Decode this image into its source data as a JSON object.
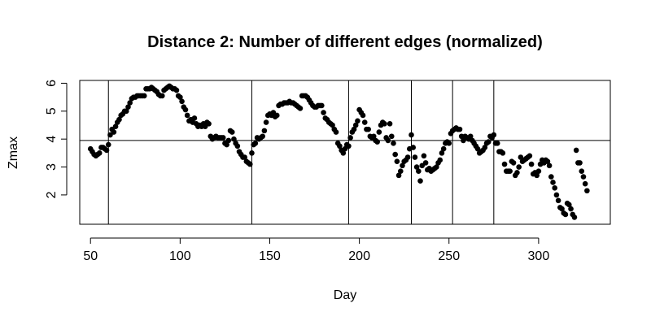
{
  "chart_data": {
    "type": "scatter",
    "title": "Distance 2: Number of different edges (normalized)",
    "xlabel": "Day",
    "ylabel": "Zmax",
    "xlim": [
      44,
      340
    ],
    "ylim": [
      0.95,
      6.1
    ],
    "x_ticks": [
      50,
      100,
      150,
      200,
      250,
      300
    ],
    "y_ticks": [
      2,
      3,
      4,
      5,
      6
    ],
    "grid": false,
    "legend": "none",
    "point_color": "#000000",
    "horizontal_line": 3.95,
    "vertical_lines": [
      60,
      140,
      194,
      229,
      252,
      275
    ],
    "points": [
      [
        50,
        3.65
      ],
      [
        51,
        3.55
      ],
      [
        52,
        3.45
      ],
      [
        53,
        3.4
      ],
      [
        54,
        3.45
      ],
      [
        55,
        3.5
      ],
      [
        56,
        3.7
      ],
      [
        57,
        3.7
      ],
      [
        58,
        3.65
      ],
      [
        59,
        3.6
      ],
      [
        60,
        3.8
      ],
      [
        61,
        4.15
      ],
      [
        62,
        4.35
      ],
      [
        63,
        4.25
      ],
      [
        64,
        4.45
      ],
      [
        65,
        4.6
      ],
      [
        66,
        4.7
      ],
      [
        67,
        4.85
      ],
      [
        68,
        4.9
      ],
      [
        69,
        5.0
      ],
      [
        70,
        5.0
      ],
      [
        71,
        5.15
      ],
      [
        72,
        5.3
      ],
      [
        73,
        5.45
      ],
      [
        74,
        5.5
      ],
      [
        75,
        5.5
      ],
      [
        76,
        5.55
      ],
      [
        77,
        5.55
      ],
      [
        78,
        5.55
      ],
      [
        79,
        5.55
      ],
      [
        80,
        5.55
      ],
      [
        81,
        5.8
      ],
      [
        82,
        5.8
      ],
      [
        83,
        5.8
      ],
      [
        84,
        5.85
      ],
      [
        85,
        5.8
      ],
      [
        86,
        5.75
      ],
      [
        87,
        5.7
      ],
      [
        88,
        5.6
      ],
      [
        89,
        5.55
      ],
      [
        90,
        5.55
      ],
      [
        91,
        5.75
      ],
      [
        92,
        5.8
      ],
      [
        93,
        5.85
      ],
      [
        94,
        5.9
      ],
      [
        95,
        5.85
      ],
      [
        96,
        5.8
      ],
      [
        97,
        5.8
      ],
      [
        98,
        5.75
      ],
      [
        99,
        5.55
      ],
      [
        100,
        5.5
      ],
      [
        101,
        5.35
      ],
      [
        102,
        5.15
      ],
      [
        103,
        5.05
      ],
      [
        104,
        4.85
      ],
      [
        105,
        4.65
      ],
      [
        106,
        4.7
      ],
      [
        107,
        4.6
      ],
      [
        108,
        4.75
      ],
      [
        109,
        4.55
      ],
      [
        110,
        4.45
      ],
      [
        111,
        4.5
      ],
      [
        112,
        4.45
      ],
      [
        113,
        4.55
      ],
      [
        114,
        4.45
      ],
      [
        115,
        4.6
      ],
      [
        116,
        4.55
      ],
      [
        117,
        4.1
      ],
      [
        118,
        4.0
      ],
      [
        119,
        4.05
      ],
      [
        120,
        4.1
      ],
      [
        121,
        4.05
      ],
      [
        122,
        4.05
      ],
      [
        123,
        4.05
      ],
      [
        124,
        4.05
      ],
      [
        125,
        3.85
      ],
      [
        126,
        3.8
      ],
      [
        127,
        3.95
      ],
      [
        128,
        4.3
      ],
      [
        129,
        4.25
      ],
      [
        130,
        4.0
      ],
      [
        131,
        3.85
      ],
      [
        132,
        3.75
      ],
      [
        133,
        3.55
      ],
      [
        134,
        3.45
      ],
      [
        135,
        3.35
      ],
      [
        136,
        3.35
      ],
      [
        137,
        3.2
      ],
      [
        138,
        3.15
      ],
      [
        139,
        3.1
      ],
      [
        140,
        3.5
      ],
      [
        141,
        3.8
      ],
      [
        142,
        3.85
      ],
      [
        143,
        4.05
      ],
      [
        144,
        4.0
      ],
      [
        145,
        4.05
      ],
      [
        146,
        4.1
      ],
      [
        147,
        4.3
      ],
      [
        148,
        4.6
      ],
      [
        149,
        4.85
      ],
      [
        150,
        4.9
      ],
      [
        151,
        4.85
      ],
      [
        152,
        4.95
      ],
      [
        153,
        4.8
      ],
      [
        154,
        4.85
      ],
      [
        155,
        5.2
      ],
      [
        156,
        5.25
      ],
      [
        157,
        5.25
      ],
      [
        158,
        5.3
      ],
      [
        159,
        5.3
      ],
      [
        160,
        5.3
      ],
      [
        161,
        5.35
      ],
      [
        162,
        5.3
      ],
      [
        163,
        5.3
      ],
      [
        164,
        5.25
      ],
      [
        165,
        5.2
      ],
      [
        166,
        5.15
      ],
      [
        167,
        5.1
      ],
      [
        168,
        5.55
      ],
      [
        169,
        5.55
      ],
      [
        170,
        5.55
      ],
      [
        171,
        5.5
      ],
      [
        172,
        5.4
      ],
      [
        173,
        5.3
      ],
      [
        174,
        5.2
      ],
      [
        175,
        5.15
      ],
      [
        176,
        5.15
      ],
      [
        177,
        5.2
      ],
      [
        178,
        5.2
      ],
      [
        179,
        5.2
      ],
      [
        180,
        4.95
      ],
      [
        181,
        4.75
      ],
      [
        182,
        4.7
      ],
      [
        183,
        4.6
      ],
      [
        184,
        4.55
      ],
      [
        185,
        4.5
      ],
      [
        186,
        4.35
      ],
      [
        187,
        4.25
      ],
      [
        188,
        3.85
      ],
      [
        189,
        3.75
      ],
      [
        190,
        3.6
      ],
      [
        191,
        3.5
      ],
      [
        192,
        3.65
      ],
      [
        193,
        3.8
      ],
      [
        194,
        3.75
      ],
      [
        195,
        4.05
      ],
      [
        196,
        4.25
      ],
      [
        197,
        4.35
      ],
      [
        198,
        4.5
      ],
      [
        199,
        4.65
      ],
      [
        200,
        5.05
      ],
      [
        201,
        4.95
      ],
      [
        202,
        4.85
      ],
      [
        203,
        4.6
      ],
      [
        204,
        4.35
      ],
      [
        205,
        4.35
      ],
      [
        206,
        4.1
      ],
      [
        207,
        4.05
      ],
      [
        208,
        4.1
      ],
      [
        209,
        3.95
      ],
      [
        210,
        3.9
      ],
      [
        211,
        4.25
      ],
      [
        212,
        4.5
      ],
      [
        213,
        4.6
      ],
      [
        214,
        4.55
      ],
      [
        215,
        4.05
      ],
      [
        216,
        3.95
      ],
      [
        217,
        4.55
      ],
      [
        218,
        4.1
      ],
      [
        219,
        3.85
      ],
      [
        220,
        3.45
      ],
      [
        221,
        3.2
      ],
      [
        222,
        2.7
      ],
      [
        223,
        2.85
      ],
      [
        224,
        3.05
      ],
      [
        225,
        3.2
      ],
      [
        226,
        3.25
      ],
      [
        227,
        3.35
      ],
      [
        228,
        3.65
      ],
      [
        229,
        4.15
      ],
      [
        230,
        3.7
      ],
      [
        231,
        3.35
      ],
      [
        232,
        3.0
      ],
      [
        233,
        2.85
      ],
      [
        234,
        2.5
      ],
      [
        235,
        3.05
      ],
      [
        236,
        3.4
      ],
      [
        237,
        3.15
      ],
      [
        238,
        2.9
      ],
      [
        239,
        2.95
      ],
      [
        240,
        2.85
      ],
      [
        241,
        2.9
      ],
      [
        242,
        2.95
      ],
      [
        243,
        3.0
      ],
      [
        244,
        3.15
      ],
      [
        245,
        3.25
      ],
      [
        246,
        3.5
      ],
      [
        247,
        3.65
      ],
      [
        248,
        3.85
      ],
      [
        249,
        3.9
      ],
      [
        250,
        3.85
      ],
      [
        251,
        4.2
      ],
      [
        252,
        4.3
      ],
      [
        253,
        4.35
      ],
      [
        254,
        4.4
      ],
      [
        255,
        4.35
      ],
      [
        256,
        4.35
      ],
      [
        257,
        4.1
      ],
      [
        258,
        3.95
      ],
      [
        259,
        4.1
      ],
      [
        260,
        4.05
      ],
      [
        261,
        4.0
      ],
      [
        262,
        4.1
      ],
      [
        263,
        3.95
      ],
      [
        264,
        3.85
      ],
      [
        265,
        3.75
      ],
      [
        266,
        3.65
      ],
      [
        267,
        3.5
      ],
      [
        268,
        3.55
      ],
      [
        269,
        3.6
      ],
      [
        270,
        3.7
      ],
      [
        271,
        3.85
      ],
      [
        272,
        3.9
      ],
      [
        273,
        4.1
      ],
      [
        274,
        4.05
      ],
      [
        275,
        4.15
      ],
      [
        276,
        3.85
      ],
      [
        277,
        3.85
      ],
      [
        278,
        3.55
      ],
      [
        279,
        3.55
      ],
      [
        280,
        3.5
      ],
      [
        281,
        3.1
      ],
      [
        282,
        2.85
      ],
      [
        283,
        2.85
      ],
      [
        284,
        2.85
      ],
      [
        285,
        3.2
      ],
      [
        286,
        3.15
      ],
      [
        287,
        2.7
      ],
      [
        288,
        2.8
      ],
      [
        289,
        3.0
      ],
      [
        290,
        3.35
      ],
      [
        291,
        3.2
      ],
      [
        292,
        3.25
      ],
      [
        293,
        3.3
      ],
      [
        294,
        3.35
      ],
      [
        295,
        3.4
      ],
      [
        296,
        3.1
      ],
      [
        297,
        2.75
      ],
      [
        298,
        2.8
      ],
      [
        299,
        2.7
      ],
      [
        300,
        2.85
      ],
      [
        301,
        3.1
      ],
      [
        302,
        3.25
      ],
      [
        303,
        3.15
      ],
      [
        304,
        3.25
      ],
      [
        305,
        3.2
      ],
      [
        306,
        3.05
      ],
      [
        307,
        2.65
      ],
      [
        308,
        2.45
      ],
      [
        309,
        2.25
      ],
      [
        310,
        2.0
      ],
      [
        311,
        1.8
      ],
      [
        312,
        1.55
      ],
      [
        313,
        1.5
      ],
      [
        314,
        1.35
      ],
      [
        315,
        1.3
      ],
      [
        316,
        1.7
      ],
      [
        317,
        1.65
      ],
      [
        318,
        1.5
      ],
      [
        319,
        1.3
      ],
      [
        320,
        1.2
      ],
      [
        321,
        3.6
      ],
      [
        322,
        3.15
      ],
      [
        323,
        3.15
      ],
      [
        324,
        2.85
      ],
      [
        325,
        2.65
      ],
      [
        326,
        2.4
      ],
      [
        327,
        2.15
      ]
    ]
  }
}
